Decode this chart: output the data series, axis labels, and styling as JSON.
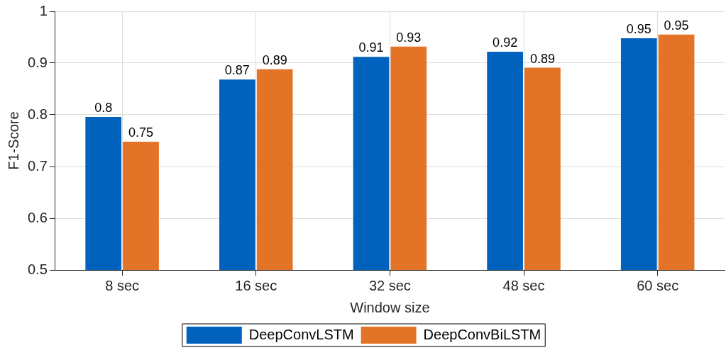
{
  "chart_data": {
    "type": "bar",
    "xlabel": "Window size",
    "ylabel": "F1-Score",
    "categories": [
      "8 sec",
      "16 sec",
      "32 sec",
      "48 sec",
      "60 sec"
    ],
    "series": [
      {
        "name": "DeepConvLSTM",
        "color": "#0062bd",
        "values": [
          0.796,
          0.868,
          0.912,
          0.922,
          0.948
        ],
        "value_labels": [
          "0.8",
          "0.87",
          "0.91",
          "0.92",
          "0.95"
        ]
      },
      {
        "name": "DeepConvBiLSTM",
        "color": "#e37326",
        "values": [
          0.748,
          0.888,
          0.932,
          0.891,
          0.955
        ],
        "value_labels": [
          "0.75",
          "0.89",
          "0.93",
          "0.89",
          "0.95"
        ]
      }
    ],
    "ylim": [
      0.5,
      1
    ],
    "yticks": [
      0.5,
      0.6,
      0.7,
      0.8,
      0.9,
      1
    ],
    "grid": true,
    "legend": "bottom"
  }
}
